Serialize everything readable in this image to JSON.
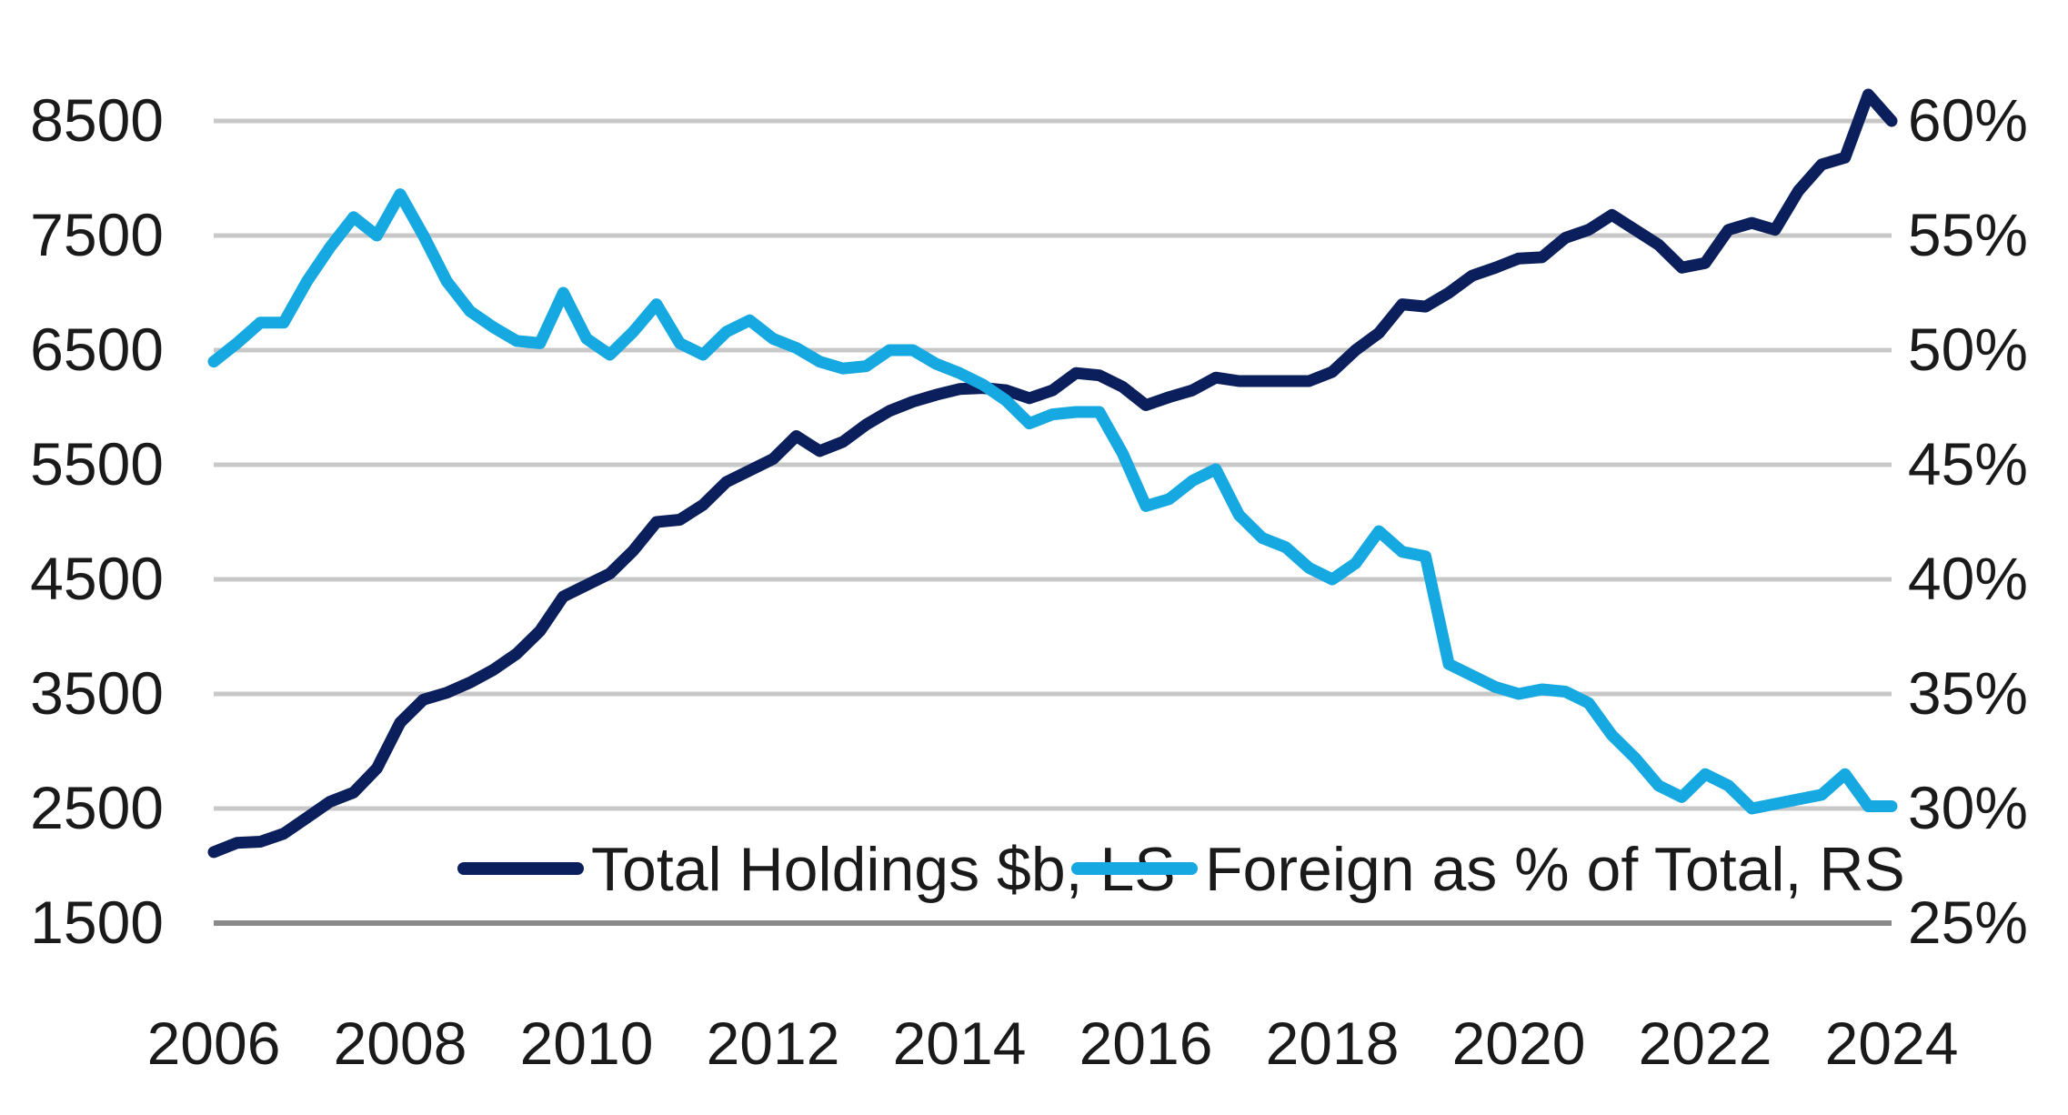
{
  "chart_data": {
    "type": "line",
    "title": "",
    "xlabel": "",
    "ylabel_left": "",
    "ylabel_right": "",
    "x_ticks": [
      "2006",
      "2008",
      "2010",
      "2012",
      "2014",
      "2016",
      "2018",
      "2020",
      "2022",
      "2024"
    ],
    "y_left_ticks": [
      "8500",
      "7500",
      "6500",
      "5500",
      "4500",
      "3500",
      "2500",
      "1500"
    ],
    "y_right_ticks": [
      "60%",
      "55%",
      "50%",
      "45%",
      "40%",
      "35%",
      "30%",
      "25%"
    ],
    "xlim": [
      2006,
      2024
    ],
    "ylim_left": [
      1500,
      8500
    ],
    "ylim_right": [
      25,
      60
    ],
    "grid": true,
    "legend_position": "bottom-center",
    "colors": {
      "total": "#0b1f5c",
      "foreign": "#16a8e0",
      "grid": "#c8c8c8",
      "axis": "#8a8a8a"
    },
    "series": [
      {
        "name": "Total Holdings $b, LS",
        "axis": "left",
        "x": [
          2006,
          2006.25,
          2006.5,
          2006.75,
          2007,
          2007.25,
          2007.5,
          2007.75,
          2008,
          2008.25,
          2008.5,
          2008.75,
          2009,
          2009.25,
          2009.5,
          2009.75,
          2010,
          2010.25,
          2010.5,
          2010.75,
          2011,
          2011.25,
          2011.5,
          2011.75,
          2012,
          2012.25,
          2012.5,
          2012.75,
          2013,
          2013.25,
          2013.5,
          2013.75,
          2014,
          2014.25,
          2014.5,
          2014.75,
          2015,
          2015.25,
          2015.5,
          2015.75,
          2016,
          2016.25,
          2016.5,
          2016.75,
          2017,
          2017.25,
          2017.5,
          2017.75,
          2018,
          2018.25,
          2018.5,
          2018.75,
          2019,
          2019.25,
          2019.5,
          2019.75,
          2020,
          2020.25,
          2020.5,
          2020.75,
          2021,
          2021.25,
          2021.5,
          2021.75,
          2022,
          2022.25,
          2022.5,
          2022.75,
          2023,
          2023.25,
          2023.5,
          2023.75,
          2024
        ],
        "values": [
          2120,
          2200,
          2210,
          2280,
          2420,
          2560,
          2640,
          2850,
          3250,
          3450,
          3510,
          3600,
          3710,
          3850,
          4050,
          4350,
          4450,
          4550,
          4750,
          5000,
          5020,
          5150,
          5350,
          5450,
          5550,
          5750,
          5620,
          5700,
          5850,
          5970,
          6050,
          6110,
          6160,
          6170,
          6150,
          6080,
          6150,
          6300,
          6280,
          6180,
          6020,
          6090,
          6150,
          6260,
          6230,
          6230,
          6230,
          6230,
          6310,
          6500,
          6650,
          6900,
          6880,
          7000,
          7150,
          7220,
          7300,
          7310,
          7480,
          7550,
          7680,
          7550,
          7420,
          7220,
          7260,
          7550,
          7610,
          7550,
          7890,
          8120,
          8180,
          8730,
          8500
        ]
      },
      {
        "name": "Foreign as % of Total, RS",
        "axis": "right",
        "x": [
          2006,
          2006.25,
          2006.5,
          2006.75,
          2007,
          2007.25,
          2007.5,
          2007.75,
          2008,
          2008.25,
          2008.5,
          2008.75,
          2009,
          2009.25,
          2009.5,
          2009.75,
          2010,
          2010.25,
          2010.5,
          2010.75,
          2011,
          2011.25,
          2011.5,
          2011.75,
          2012,
          2012.25,
          2012.5,
          2012.75,
          2013,
          2013.25,
          2013.5,
          2013.75,
          2014,
          2014.25,
          2014.5,
          2014.75,
          2015,
          2015.25,
          2015.5,
          2015.75,
          2016,
          2016.25,
          2016.5,
          2016.75,
          2017,
          2017.25,
          2017.5,
          2017.75,
          2018,
          2018.25,
          2018.5,
          2018.75,
          2019,
          2019.25,
          2019.5,
          2019.75,
          2020,
          2020.25,
          2020.5,
          2020.75,
          2021,
          2021.25,
          2021.5,
          2021.75,
          2022,
          2022.25,
          2022.5,
          2022.75,
          2023,
          2023.25,
          2023.5,
          2023.75,
          2024
        ],
        "values": [
          49.5,
          50.3,
          51.2,
          51.2,
          53.0,
          54.5,
          55.8,
          55.0,
          56.8,
          55.0,
          53.0,
          51.7,
          51.0,
          50.4,
          50.3,
          52.5,
          50.5,
          49.8,
          50.8,
          52.0,
          50.3,
          49.8,
          50.8,
          51.3,
          50.5,
          50.1,
          49.5,
          49.2,
          49.3,
          50.0,
          50.0,
          49.4,
          49.0,
          48.5,
          47.8,
          46.8,
          47.2,
          47.3,
          47.3,
          45.5,
          43.2,
          43.5,
          44.3,
          44.8,
          42.8,
          41.8,
          41.4,
          40.5,
          40.0,
          40.7,
          42.1,
          41.2,
          41.0,
          36.3,
          35.8,
          35.3,
          35.0,
          35.2,
          35.1,
          34.6,
          33.2,
          32.2,
          31.0,
          30.5,
          31.5,
          31.0,
          30.0,
          30.2,
          30.4,
          30.6,
          31.5,
          30.1,
          30.1
        ]
      }
    ]
  }
}
